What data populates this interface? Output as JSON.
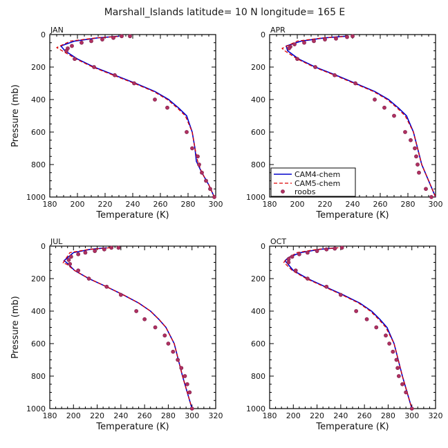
{
  "figure": {
    "title": "Marshall_Islands  latitude= 10 N longitude= 165 E"
  },
  "colors": {
    "cam4": "#0000cc",
    "cam5": "#dd0000",
    "roobs": "#b03060",
    "roobs_edge": "#7a1f4a"
  },
  "legend": {
    "items": [
      "CAM4-chem",
      "CAM5-chem",
      "roobs"
    ]
  },
  "chart_data": [
    {
      "type": "line",
      "panel": "JAN",
      "xlabel": "Temperature (K)",
      "ylabel": "Pressure (mb)",
      "xlim": [
        180,
        300
      ],
      "xticks": [
        180,
        200,
        220,
        240,
        260,
        280,
        300
      ],
      "ylim": [
        1000,
        0
      ],
      "yticks": [
        0,
        200,
        400,
        600,
        800,
        1000
      ],
      "series": [
        {
          "name": "CAM4-chem",
          "style": "solid",
          "x": [
            230,
            215,
            198,
            188,
            191,
            200,
            212,
            227,
            242,
            256,
            266,
            273,
            279,
            283,
            285,
            286,
            290,
            295,
            299
          ],
          "y": [
            10,
            20,
            40,
            70,
            100,
            150,
            200,
            250,
            300,
            350,
            400,
            450,
            500,
            600,
            700,
            780,
            850,
            925,
            1000
          ]
        },
        {
          "name": "CAM5-chem",
          "style": "dashed",
          "x": [
            233,
            214,
            195,
            185,
            189,
            199,
            211,
            226,
            241,
            255,
            265,
            272,
            278,
            283,
            285,
            287,
            290,
            295,
            299
          ],
          "y": [
            10,
            20,
            40,
            80,
            100,
            150,
            200,
            250,
            300,
            350,
            400,
            450,
            500,
            600,
            700,
            780,
            850,
            925,
            1000
          ]
        },
        {
          "name": "roobs",
          "style": "markers",
          "x": [
            238,
            232,
            226,
            218,
            210,
            203,
            196,
            193,
            192,
            198,
            212,
            227,
            241,
            256,
            265,
            279,
            283,
            287,
            288,
            290,
            293,
            296,
            299
          ],
          "y": [
            10,
            10,
            20,
            30,
            40,
            50,
            70,
            85,
            100,
            150,
            200,
            250,
            300,
            400,
            450,
            600,
            700,
            750,
            800,
            850,
            900,
            950,
            1000
          ]
        }
      ]
    },
    {
      "type": "line",
      "panel": "APR",
      "xlabel": "Temperature (K)",
      "ylabel": "",
      "xlim": [
        180,
        300
      ],
      "xticks": [
        180,
        200,
        220,
        240,
        260,
        280,
        300
      ],
      "ylim": [
        1000,
        0
      ],
      "yticks": [
        0,
        200,
        400,
        600,
        800,
        1000
      ],
      "series": [
        {
          "name": "CAM4-chem",
          "style": "solid",
          "x": [
            235,
            220,
            203,
            192,
            193,
            201,
            213,
            228,
            242,
            256,
            266,
            273,
            279,
            284,
            287,
            290,
            295,
            300
          ],
          "y": [
            10,
            20,
            40,
            70,
            100,
            150,
            200,
            250,
            300,
            350,
            400,
            450,
            500,
            600,
            700,
            800,
            900,
            1000
          ]
        },
        {
          "name": "CAM5-chem",
          "style": "dashed",
          "x": [
            237,
            219,
            200,
            189,
            191,
            200,
            212,
            227,
            241,
            255,
            265,
            272,
            278,
            284,
            287,
            290,
            295,
            300
          ],
          "y": [
            10,
            20,
            40,
            85,
            100,
            150,
            200,
            250,
            300,
            350,
            400,
            450,
            500,
            600,
            700,
            800,
            900,
            1000
          ]
        },
        {
          "name": "roobs",
          "style": "markers",
          "x": [
            240,
            236,
            228,
            220,
            212,
            205,
            198,
            195,
            194,
            200,
            213,
            227,
            242,
            256,
            263,
            270,
            278,
            282,
            285,
            286,
            287,
            288,
            293,
            297
          ],
          "y": [
            10,
            15,
            25,
            30,
            40,
            50,
            60,
            75,
            85,
            150,
            200,
            250,
            300,
            400,
            450,
            500,
            600,
            650,
            700,
            750,
            800,
            850,
            950,
            1000
          ]
        }
      ]
    },
    {
      "type": "line",
      "panel": "JUL",
      "xlabel": "Temperature (K)",
      "ylabel": "Pressure (mb)",
      "xlim": [
        180,
        320
      ],
      "xticks": [
        180,
        200,
        220,
        240,
        260,
        280,
        300,
        320
      ],
      "ylim": [
        1000,
        0
      ],
      "yticks": [
        0,
        200,
        400,
        600,
        800,
        1000
      ],
      "series": [
        {
          "name": "CAM4-chem",
          "style": "solid",
          "x": [
            228,
            214,
            200,
            192,
            194,
            201,
            213,
            228,
            242,
            255,
            265,
            272,
            278,
            285,
            292,
            300
          ],
          "y": [
            10,
            20,
            40,
            90,
            100,
            150,
            200,
            250,
            300,
            350,
            400,
            450,
            500,
            600,
            800,
            1000
          ]
        },
        {
          "name": "CAM5-chem",
          "style": "dashed",
          "x": [
            231,
            213,
            197,
            191,
            194,
            201,
            213,
            228,
            242,
            255,
            265,
            272,
            278,
            285,
            292,
            300
          ],
          "y": [
            10,
            20,
            40,
            105,
            110,
            150,
            200,
            250,
            300,
            350,
            400,
            450,
            500,
            600,
            800,
            1000
          ]
        },
        {
          "name": "roobs",
          "style": "markers",
          "x": [
            238,
            232,
            226,
            218,
            210,
            204,
            198,
            196,
            197,
            204,
            213,
            228,
            240,
            253,
            260,
            269,
            277,
            280,
            284,
            288,
            291,
            294,
            296,
            298,
            300
          ],
          "y": [
            10,
            10,
            20,
            30,
            40,
            50,
            65,
            85,
            110,
            150,
            200,
            250,
            300,
            400,
            450,
            500,
            550,
            600,
            650,
            700,
            750,
            800,
            850,
            900,
            1000
          ]
        }
      ]
    },
    {
      "type": "line",
      "panel": "OCT",
      "xlabel": "Temperature (K)",
      "ylabel": "",
      "xlim": [
        180,
        320
      ],
      "xticks": [
        180,
        200,
        220,
        240,
        260,
        280,
        300,
        320
      ],
      "ylim": [
        1000,
        0
      ],
      "yticks": [
        0,
        200,
        400,
        600,
        800,
        1000
      ],
      "series": [
        {
          "name": "CAM4-chem",
          "style": "solid",
          "x": [
            237,
            222,
            206,
            196,
            193,
            200,
            212,
            227,
            242,
            256,
            266,
            273,
            279,
            285,
            292,
            300
          ],
          "y": [
            10,
            20,
            40,
            70,
            90,
            150,
            200,
            250,
            300,
            350,
            400,
            450,
            500,
            600,
            800,
            1000
          ]
        },
        {
          "name": "CAM5-chem",
          "style": "dashed",
          "x": [
            238,
            220,
            203,
            194,
            192,
            199,
            211,
            226,
            241,
            255,
            265,
            272,
            278,
            285,
            292,
            300
          ],
          "y": [
            10,
            20,
            40,
            80,
            100,
            150,
            200,
            250,
            300,
            350,
            400,
            450,
            500,
            600,
            800,
            1000
          ]
        },
        {
          "name": "roobs",
          "style": "markers",
          "x": [
            241,
            235,
            228,
            220,
            212,
            205,
            199,
            196,
            196,
            202,
            212,
            228,
            240,
            253,
            262,
            270,
            278,
            281,
            284,
            287,
            288,
            289,
            292,
            295,
            300
          ],
          "y": [
            10,
            15,
            20,
            30,
            40,
            50,
            65,
            80,
            100,
            150,
            200,
            250,
            300,
            400,
            450,
            500,
            550,
            600,
            650,
            700,
            750,
            800,
            850,
            900,
            1000
          ]
        }
      ]
    }
  ]
}
